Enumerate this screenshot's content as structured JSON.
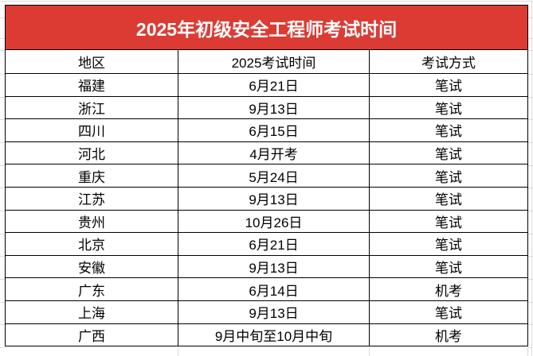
{
  "banner": {
    "title": "2025年初级安全工程师考试时间",
    "bg_color": "#dc3b33",
    "text_color": "#ffffff"
  },
  "table": {
    "headers": [
      "地区",
      "2025考试时间",
      "考试方式"
    ],
    "rows": [
      [
        "福建",
        "6月21日",
        "笔试"
      ],
      [
        "浙江",
        "9月13日",
        "笔试"
      ],
      [
        "四川",
        "6月15日",
        "笔试"
      ],
      [
        "河北",
        "4月开考",
        "笔试"
      ],
      [
        "重庆",
        "5月24日",
        "笔试"
      ],
      [
        "江苏",
        "9月13日",
        "笔试"
      ],
      [
        "贵州",
        "10月26日",
        "笔试"
      ],
      [
        "北京",
        "6月21日",
        "笔试"
      ],
      [
        "安徽",
        "9月13日",
        "笔试"
      ],
      [
        "广东",
        "6月14日",
        "机考"
      ],
      [
        "上海",
        "9月13日",
        "笔试"
      ],
      [
        "广西",
        "9月中旬至10月中旬",
        "机考"
      ]
    ]
  },
  "colors": {
    "border": "#000000",
    "gridline": "#dcdcdc",
    "page_bg": "#ffffff"
  }
}
